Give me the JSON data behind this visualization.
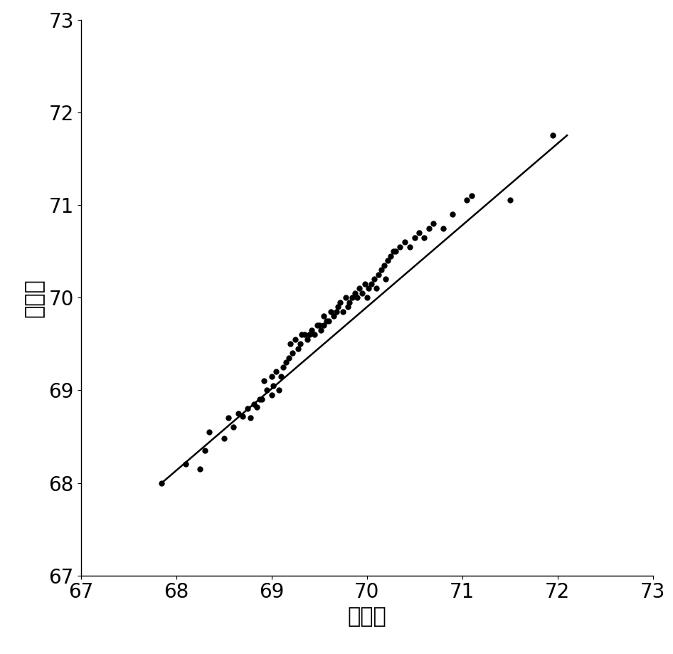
{
  "scatter_x": [
    67.85,
    68.1,
    68.25,
    68.3,
    68.35,
    68.5,
    68.55,
    68.6,
    68.65,
    68.7,
    68.75,
    68.78,
    68.82,
    68.85,
    68.88,
    68.9,
    68.92,
    68.95,
    69.0,
    69.0,
    69.02,
    69.05,
    69.08,
    69.1,
    69.12,
    69.15,
    69.18,
    69.2,
    69.22,
    69.25,
    69.28,
    69.3,
    69.32,
    69.35,
    69.38,
    69.4,
    69.42,
    69.45,
    69.48,
    69.5,
    69.52,
    69.55,
    69.55,
    69.58,
    69.6,
    69.62,
    69.65,
    69.68,
    69.7,
    69.72,
    69.75,
    69.78,
    69.8,
    69.82,
    69.85,
    69.88,
    69.9,
    69.92,
    69.95,
    69.98,
    70.0,
    70.02,
    70.05,
    70.08,
    70.1,
    70.12,
    70.15,
    70.18,
    70.2,
    70.22,
    70.25,
    70.28,
    70.3,
    70.35,
    70.4,
    70.45,
    70.5,
    70.55,
    70.6,
    70.65,
    70.7,
    70.8,
    70.9,
    71.05,
    71.1,
    71.5,
    71.95
  ],
  "scatter_y": [
    68.0,
    68.2,
    68.15,
    68.35,
    68.55,
    68.48,
    68.7,
    68.6,
    68.75,
    68.72,
    68.8,
    68.7,
    68.85,
    68.82,
    68.9,
    68.9,
    69.1,
    69.0,
    68.95,
    69.15,
    69.05,
    69.2,
    69.0,
    69.15,
    69.25,
    69.3,
    69.35,
    69.5,
    69.4,
    69.55,
    69.45,
    69.5,
    69.6,
    69.6,
    69.55,
    69.6,
    69.65,
    69.6,
    69.7,
    69.7,
    69.65,
    69.7,
    69.8,
    69.75,
    69.75,
    69.85,
    69.8,
    69.85,
    69.9,
    69.95,
    69.85,
    70.0,
    69.9,
    69.95,
    70.0,
    70.05,
    70.0,
    70.1,
    70.05,
    70.15,
    70.0,
    70.1,
    70.15,
    70.2,
    70.1,
    70.25,
    70.3,
    70.35,
    70.2,
    70.4,
    70.45,
    70.5,
    70.5,
    70.55,
    70.6,
    70.55,
    70.65,
    70.7,
    70.65,
    70.75,
    70.8,
    70.75,
    70.9,
    71.05,
    71.1,
    71.05,
    71.75
  ],
  "line_x": [
    67.85,
    72.1
  ],
  "line_y": [
    68.0,
    71.75
  ],
  "xlim": [
    67,
    73
  ],
  "ylim": [
    67,
    73
  ],
  "xticks": [
    67,
    68,
    69,
    70,
    71,
    72,
    73
  ],
  "yticks": [
    67,
    68,
    69,
    70,
    71,
    72,
    73
  ],
  "xlabel": "实际値",
  "ylabel": "预测値",
  "marker_color": "#000000",
  "line_color": "#000000",
  "background_color": "#ffffff",
  "marker_size": 5,
  "line_width": 1.8,
  "xlabel_fontsize": 22,
  "ylabel_fontsize": 22,
  "tick_fontsize": 20
}
